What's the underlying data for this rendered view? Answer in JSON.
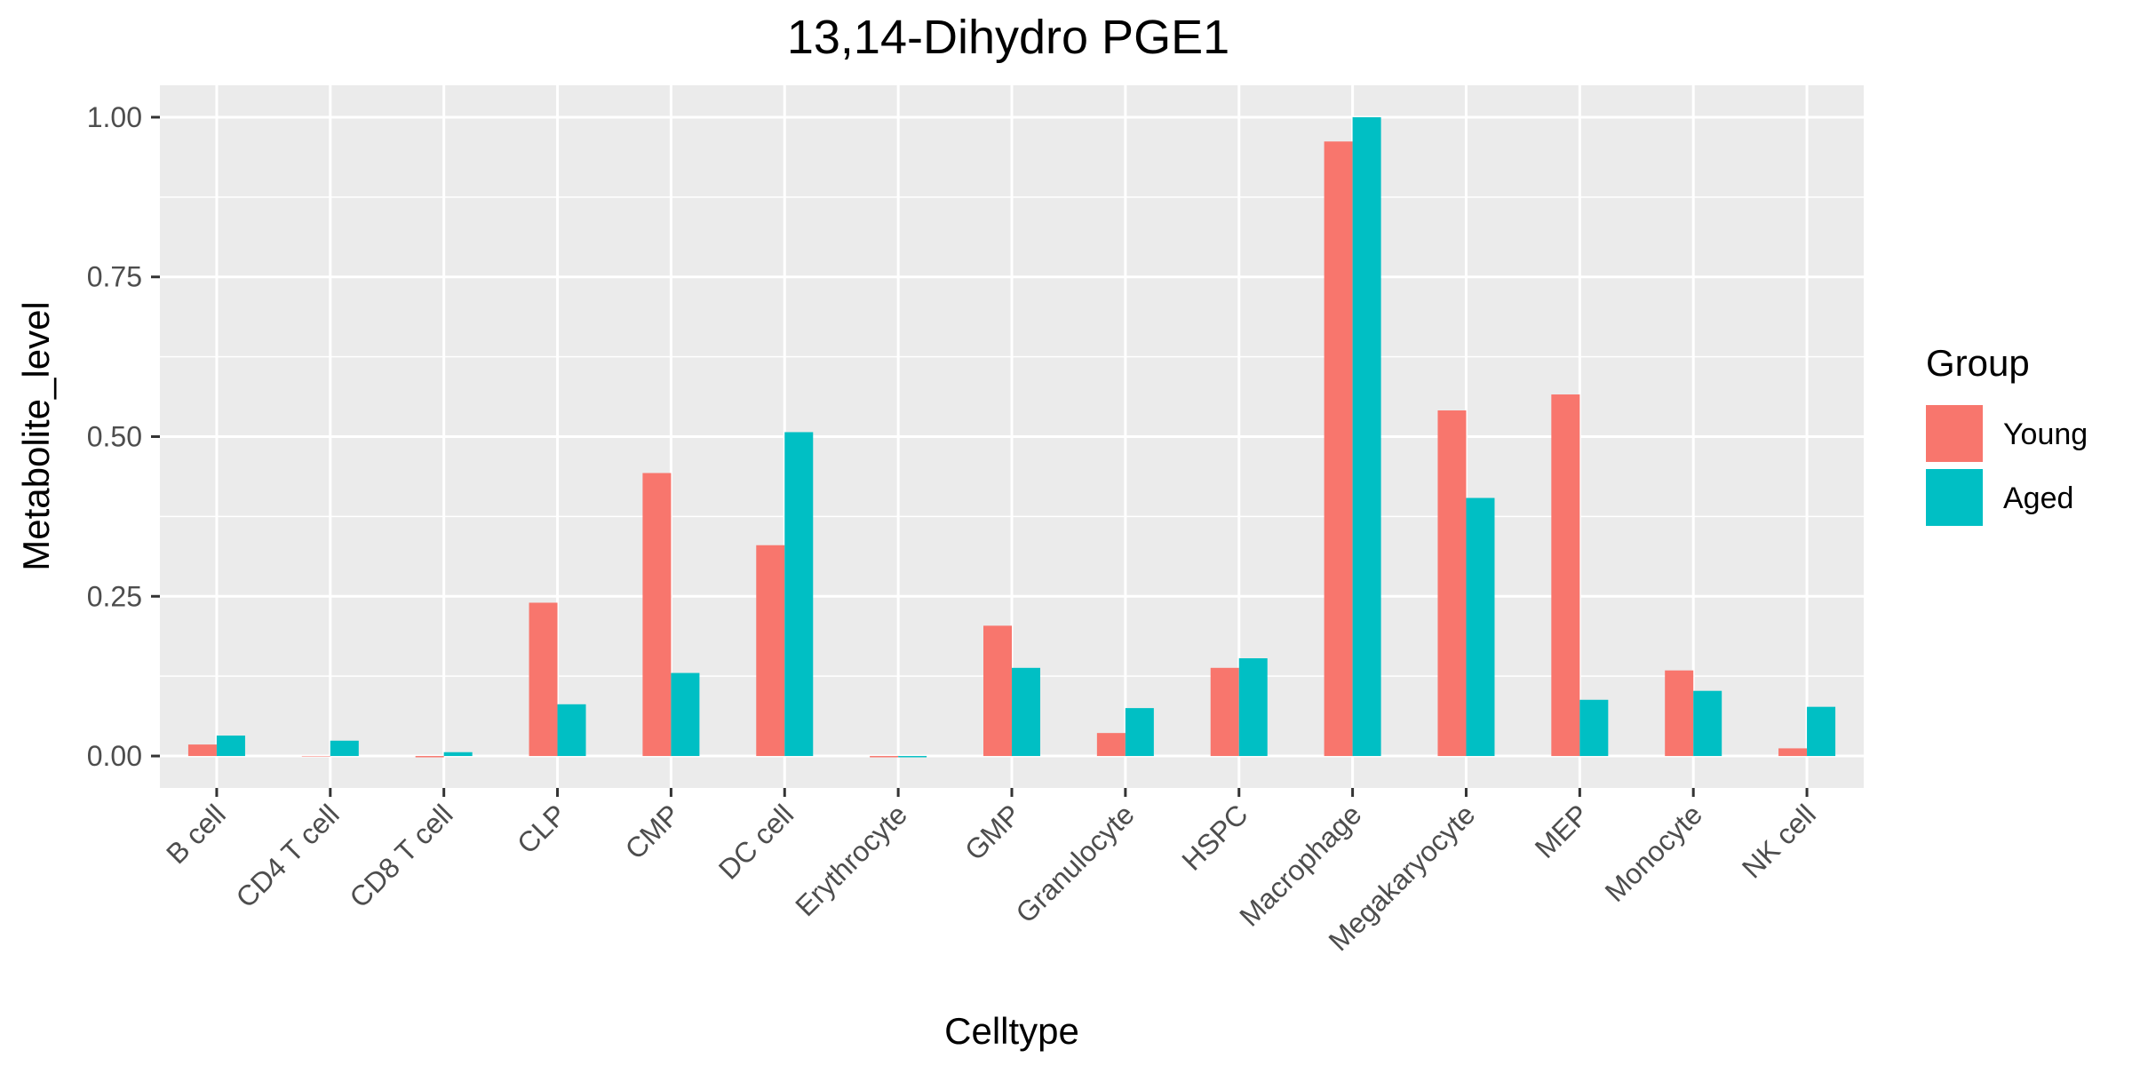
{
  "chart_data": {
    "type": "bar",
    "title": "13,14-Dihydro PGE1",
    "xlabel": "Celltype",
    "ylabel": "Metabolite_level",
    "ylim": [
      -0.05,
      1.05
    ],
    "yticks": [
      0.0,
      0.25,
      0.5,
      0.75,
      1.0
    ],
    "ytick_labels": [
      "0.00",
      "0.25",
      "0.50",
      "0.75",
      "1.00"
    ],
    "grid": true,
    "legend": {
      "title": "Group",
      "placement": "right"
    },
    "categories": [
      "B cell",
      "CD4 T cell",
      "CD8 T cell",
      "CLP",
      "CMP",
      "DC cell",
      "Erythrocyte",
      "GMP",
      "Granulocyte",
      "HSPC",
      "Macrophage",
      "Megakaryocyte",
      "MEP",
      "Monocyte",
      "NK cell"
    ],
    "series": [
      {
        "name": "Young",
        "color": "#F8766D",
        "values": [
          0.018,
          0.0,
          -0.002,
          0.24,
          0.443,
          0.33,
          -0.002,
          0.204,
          0.036,
          0.138,
          0.962,
          0.541,
          0.566,
          0.134,
          0.012
        ]
      },
      {
        "name": "Aged",
        "color": "#00BFC4",
        "values": [
          0.032,
          0.024,
          0.006,
          0.081,
          0.13,
          0.507,
          -0.002,
          0.138,
          0.075,
          0.153,
          1.0,
          0.404,
          0.088,
          0.102,
          0.077
        ]
      }
    ]
  }
}
